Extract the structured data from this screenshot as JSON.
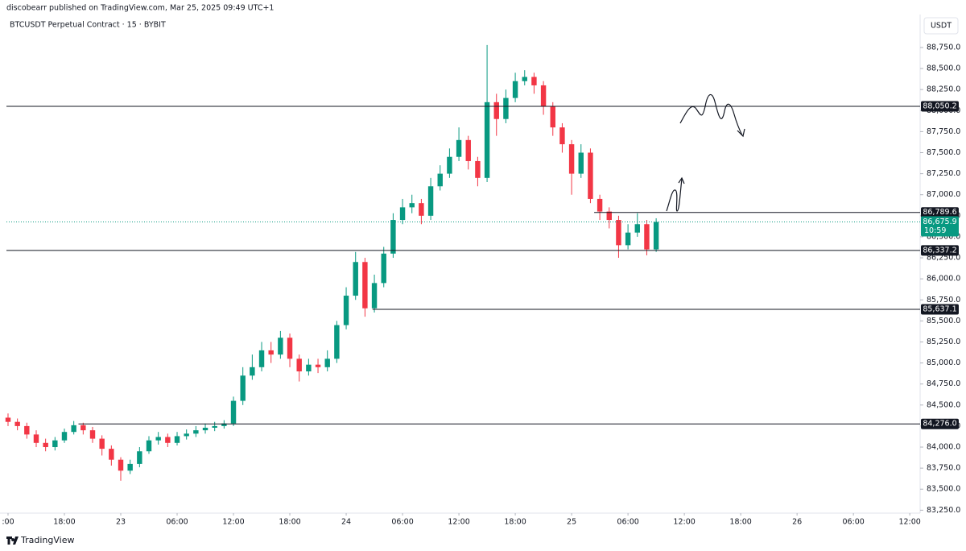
{
  "header": "discobearr published on TradingView.com, Mar 25, 2025 09:49 UTC+1",
  "brand": "TradingView",
  "currency": "USDT",
  "chart_data": {
    "type": "candlestick",
    "title": "BTCUSDT Perpetual Contract · 15 · BYBIT",
    "up_color": "#089981",
    "down_color": "#f23645",
    "x": [
      0,
      1,
      2,
      3,
      4,
      5,
      6,
      7,
      8,
      9,
      10,
      11,
      12,
      13,
      14,
      15,
      16,
      17,
      18,
      19,
      20,
      21,
      22,
      23,
      24,
      25,
      26,
      27,
      28,
      29,
      30,
      31,
      32,
      33,
      34,
      35,
      36,
      37,
      38,
      39,
      40,
      41,
      42,
      43,
      44,
      45,
      46,
      47,
      48,
      49,
      50,
      51,
      52,
      53,
      54,
      55,
      56,
      57,
      58,
      59,
      60,
      61,
      62,
      63,
      64,
      65,
      66,
      67,
      68,
      69
    ],
    "open": [
      84350,
      84300,
      84250,
      84150,
      84050,
      84000,
      84080,
      84180,
      84260,
      84200,
      84100,
      83980,
      83850,
      83720,
      83800,
      83950,
      84080,
      84120,
      84050,
      84130,
      84160,
      84200,
      84230,
      84250,
      84280,
      84550,
      84850,
      84950,
      85150,
      85100,
      85300,
      85050,
      84900,
      84980,
      84950,
      85050,
      85450,
      85800,
      86200,
      85650,
      85950,
      86300,
      86700,
      86850,
      86900,
      86750,
      87100,
      87250,
      87450,
      87650,
      87400,
      87200,
      88100,
      87900,
      88150,
      88350,
      88400,
      88300,
      88050,
      87800,
      87600,
      87250,
      87500,
      86950,
      86800,
      86700,
      86400,
      86550,
      86650,
      86350
    ],
    "high": [
      84400,
      84340,
      84290,
      84200,
      84100,
      84120,
      84220,
      84310,
      84290,
      84240,
      84140,
      84020,
      83880,
      83850,
      84000,
      84130,
      84180,
      84160,
      84180,
      84210,
      84250,
      84280,
      84300,
      84320,
      84600,
      84950,
      85100,
      85250,
      85250,
      85380,
      85350,
      85100,
      85050,
      85050,
      85150,
      85500,
      85900,
      86320,
      86250,
      86050,
      86380,
      86780,
      86950,
      87000,
      86950,
      87200,
      87350,
      87550,
      87800,
      87700,
      87450,
      88780,
      88200,
      88250,
      88450,
      88480,
      88450,
      88350,
      88100,
      87850,
      87650,
      87600,
      87550,
      87000,
      86850,
      86750,
      86650,
      86780,
      86700,
      86720
    ],
    "low": [
      84250,
      84200,
      84100,
      84000,
      83950,
      83960,
      84050,
      84150,
      84150,
      84050,
      83900,
      83780,
      83600,
      83680,
      83760,
      83920,
      84030,
      84000,
      84020,
      84090,
      84120,
      84160,
      84190,
      84220,
      84250,
      84500,
      84800,
      84900,
      85000,
      85050,
      84950,
      84780,
      84850,
      84880,
      84900,
      85000,
      85400,
      85750,
      85550,
      85600,
      85900,
      86250,
      86650,
      86780,
      86650,
      86700,
      87050,
      87200,
      87400,
      87300,
      87100,
      87150,
      87700,
      87850,
      88100,
      88300,
      88200,
      87950,
      87700,
      87500,
      87000,
      87200,
      86900,
      86700,
      86600,
      86250,
      86350,
      86500,
      86280,
      86320
    ],
    "close": [
      84300,
      84250,
      84150,
      84050,
      84000,
      84080,
      84180,
      84260,
      84200,
      84100,
      83980,
      83850,
      83720,
      83800,
      83950,
      84080,
      84120,
      84050,
      84130,
      84160,
      84200,
      84230,
      84250,
      84280,
      84550,
      84850,
      84950,
      85150,
      85100,
      85300,
      85050,
      84900,
      84980,
      84950,
      85050,
      85450,
      85800,
      86200,
      85650,
      85950,
      86300,
      86700,
      86850,
      86900,
      86750,
      87100,
      87250,
      87450,
      87650,
      87400,
      87200,
      88100,
      87900,
      88150,
      88350,
      88400,
      88300,
      88050,
      87800,
      87600,
      87250,
      87500,
      86950,
      86800,
      86700,
      86400,
      86550,
      86650,
      86350,
      86676
    ],
    "xlim": [
      -0.17,
      97.1
    ],
    "xticks": [
      {
        "value": 0,
        "label": ":00"
      },
      {
        "value": 6,
        "label": "18:00"
      },
      {
        "value": 12,
        "label": "23"
      },
      {
        "value": 18,
        "label": "06:00"
      },
      {
        "value": 24,
        "label": "12:00"
      },
      {
        "value": 30,
        "label": "18:00"
      },
      {
        "value": 36,
        "label": "24"
      },
      {
        "value": 42,
        "label": "06:00"
      },
      {
        "value": 48,
        "label": "12:00"
      },
      {
        "value": 54,
        "label": "18:00"
      },
      {
        "value": 60,
        "label": "25"
      },
      {
        "value": 66,
        "label": "06:00"
      },
      {
        "value": 72,
        "label": "12:00"
      },
      {
        "value": 78,
        "label": "18:00"
      },
      {
        "value": 84,
        "label": "26"
      },
      {
        "value": 90,
        "label": "06:00"
      },
      {
        "value": 96,
        "label": "12:00"
      }
    ],
    "ylim": [
      83215,
      89123
    ],
    "yticks": [
      {
        "value": 83250,
        "label": "83,250.0"
      },
      {
        "value": 83500,
        "label": "83,500.0"
      },
      {
        "value": 83750,
        "label": "83,750.0"
      },
      {
        "value": 84000,
        "label": "84,000.0"
      },
      {
        "value": 84250,
        "label": "84,250.0"
      },
      {
        "value": 84500,
        "label": "84,500.0"
      },
      {
        "value": 84750,
        "label": "84,750.0"
      },
      {
        "value": 85000,
        "label": "85,000.0"
      },
      {
        "value": 85250,
        "label": "85,250.0"
      },
      {
        "value": 85500,
        "label": "85,500.0"
      },
      {
        "value": 85750,
        "label": "85,750.0"
      },
      {
        "value": 86000,
        "label": "86,000.0"
      },
      {
        "value": 86250,
        "label": "86,250.0"
      },
      {
        "value": 86500,
        "label": "86,500.0"
      },
      {
        "value": 86750,
        "label": "86,750.0"
      },
      {
        "value": 87000,
        "label": "87,000.0"
      },
      {
        "value": 87250,
        "label": "87,250.0"
      },
      {
        "value": 87500,
        "label": "87,500.0"
      },
      {
        "value": 87750,
        "label": "87,750.0"
      },
      {
        "value": 88000,
        "label": "88,000.0"
      },
      {
        "value": 88250,
        "label": "88,250.0"
      },
      {
        "value": 88500,
        "label": "88,500.0"
      },
      {
        "value": 88750,
        "label": "88,750.0"
      }
    ],
    "levels": [
      {
        "value": 88050.2,
        "label": "88,050.2"
      },
      {
        "value": 86789.6,
        "label": "86,789.6",
        "x_start": 62.4
      },
      {
        "value": 86337.2,
        "label": "86,337.2"
      },
      {
        "value": 85637.1,
        "label": "85,637.1",
        "x_start": 38.8
      },
      {
        "value": 84276.0,
        "label": "84,276.0",
        "x_start": 7.5
      }
    ],
    "current_price": {
      "value": 86675.9,
      "label": "86,675.9",
      "countdown": "10:59",
      "color": "#089981"
    }
  }
}
